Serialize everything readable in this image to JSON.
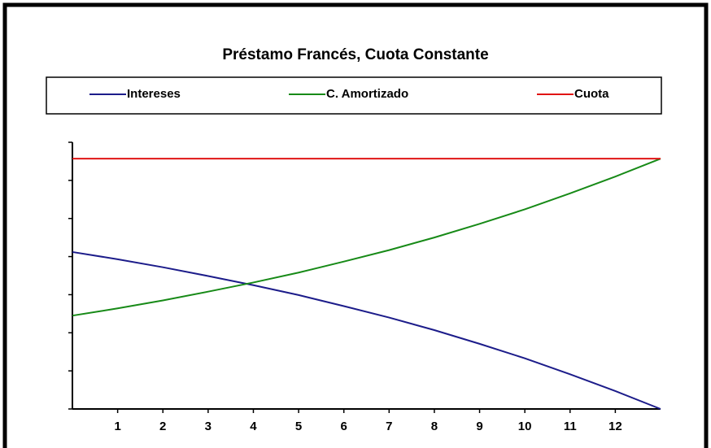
{
  "chart_data": {
    "type": "line",
    "title": "Préstamo Francés, Cuota Constante",
    "x": [
      0,
      1,
      2,
      3,
      4,
      5,
      6,
      7,
      8,
      9,
      10,
      11,
      12,
      13
    ],
    "xlim": [
      0,
      13
    ],
    "xticks": [
      1,
      2,
      3,
      4,
      5,
      6,
      7,
      8,
      9,
      10,
      11,
      12
    ],
    "ylim": [
      0,
      7
    ],
    "yticks": [
      0,
      1,
      2,
      3,
      4,
      5,
      6,
      7
    ],
    "series": [
      {
        "name": "Intereses",
        "color": "#1c1c8a",
        "values": [
          4.12,
          3.93,
          3.72,
          3.49,
          3.25,
          2.99,
          2.7,
          2.4,
          2.07,
          1.71,
          1.33,
          0.91,
          0.47,
          0
        ]
      },
      {
        "name": "C. Amortizado",
        "color": "#178a17",
        "values": [
          2.45,
          2.64,
          2.85,
          3.08,
          3.32,
          3.58,
          3.87,
          4.17,
          4.5,
          4.86,
          5.24,
          5.66,
          6.1,
          6.57
        ]
      },
      {
        "name": "Cuota",
        "color": "#e01414",
        "values": [
          6.57,
          6.57,
          6.57,
          6.57,
          6.57,
          6.57,
          6.57,
          6.57,
          6.57,
          6.57,
          6.57,
          6.57,
          6.57,
          6.57
        ]
      }
    ]
  }
}
